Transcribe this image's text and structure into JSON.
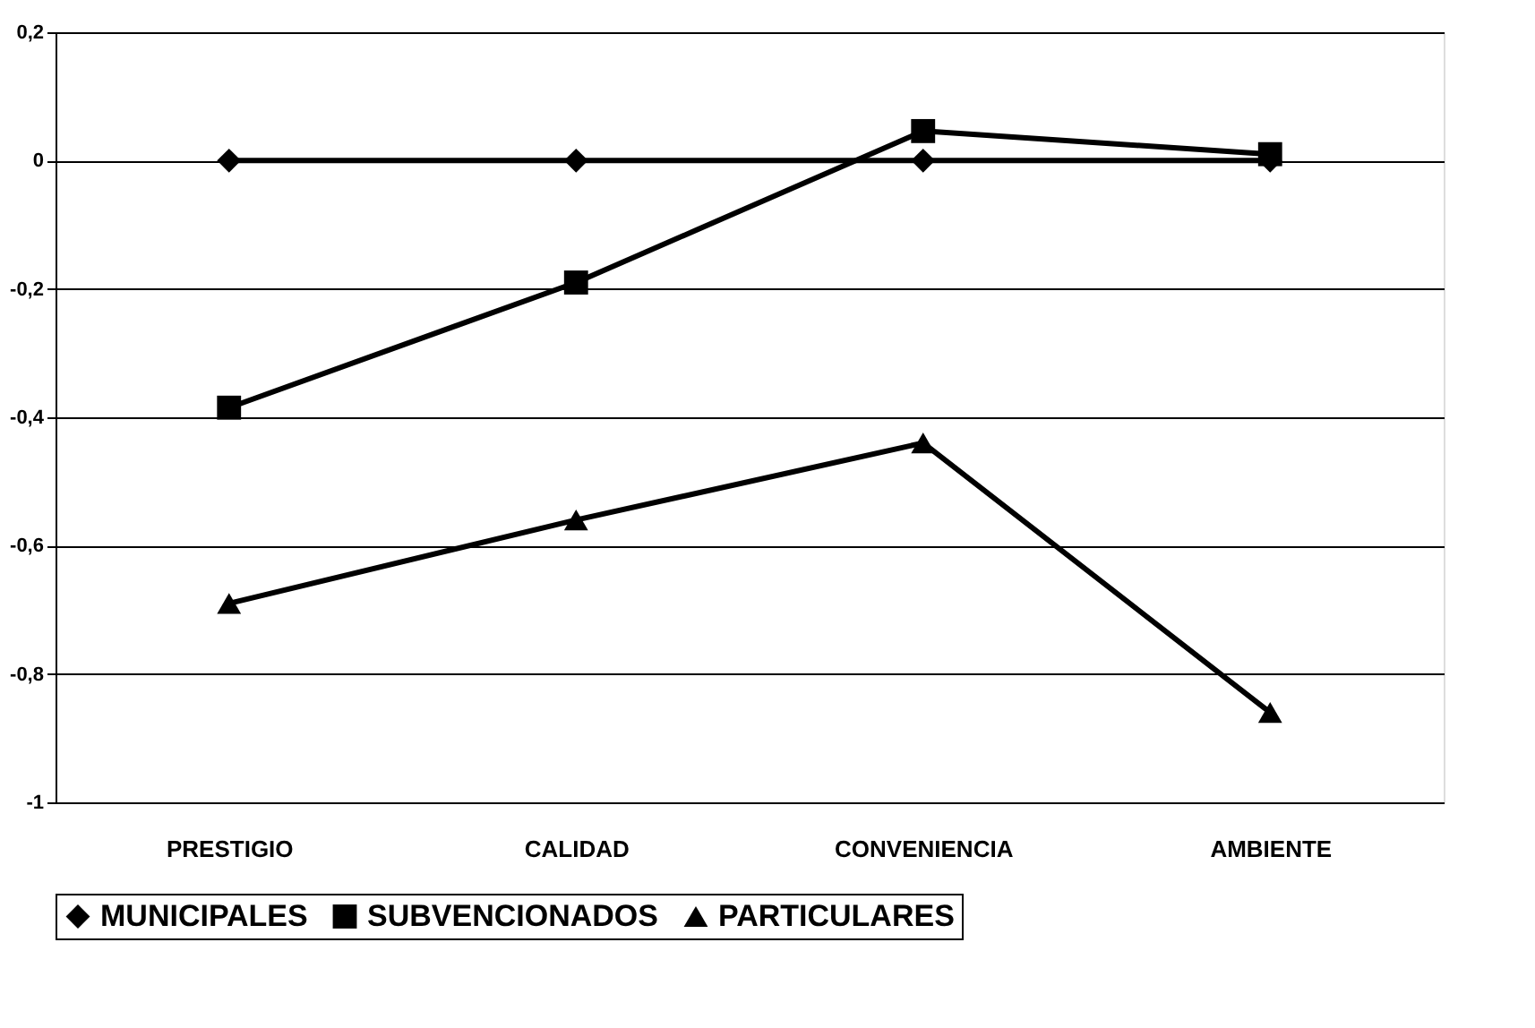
{
  "chart_data": {
    "type": "line",
    "categories": [
      "PRESTIGIO",
      "CALIDAD",
      "CONVENIENCIA",
      "AMBIENTE"
    ],
    "series": [
      {
        "name": "MUNICIPALES",
        "color": "#000000",
        "marker": "diamond",
        "values": [
          0,
          0,
          0,
          0
        ]
      },
      {
        "name": "SUBVENCIONADOS",
        "color": "#000000",
        "marker": "square",
        "values": [
          -0.385,
          -0.19,
          0.046,
          0.01
        ]
      },
      {
        "name": "PARTICULARES",
        "color": "#000000",
        "marker": "triangle",
        "values": [
          -0.69,
          -0.56,
          -0.44,
          -0.86
        ]
      }
    ],
    "ylim": [
      -1,
      0.2
    ],
    "yticks": [
      {
        "value": -1,
        "label": "-1"
      },
      {
        "value": -0.8,
        "label": "-0,8"
      },
      {
        "value": -0.6,
        "label": "-0,6"
      },
      {
        "value": -0.4,
        "label": "-0,4"
      },
      {
        "value": -0.2,
        "label": "-0,2"
      },
      {
        "value": 0,
        "label": "0"
      },
      {
        "value": 0.2,
        "label": "0,2"
      }
    ],
    "grid": "y",
    "legend": "bottom",
    "line_style": "solid"
  }
}
